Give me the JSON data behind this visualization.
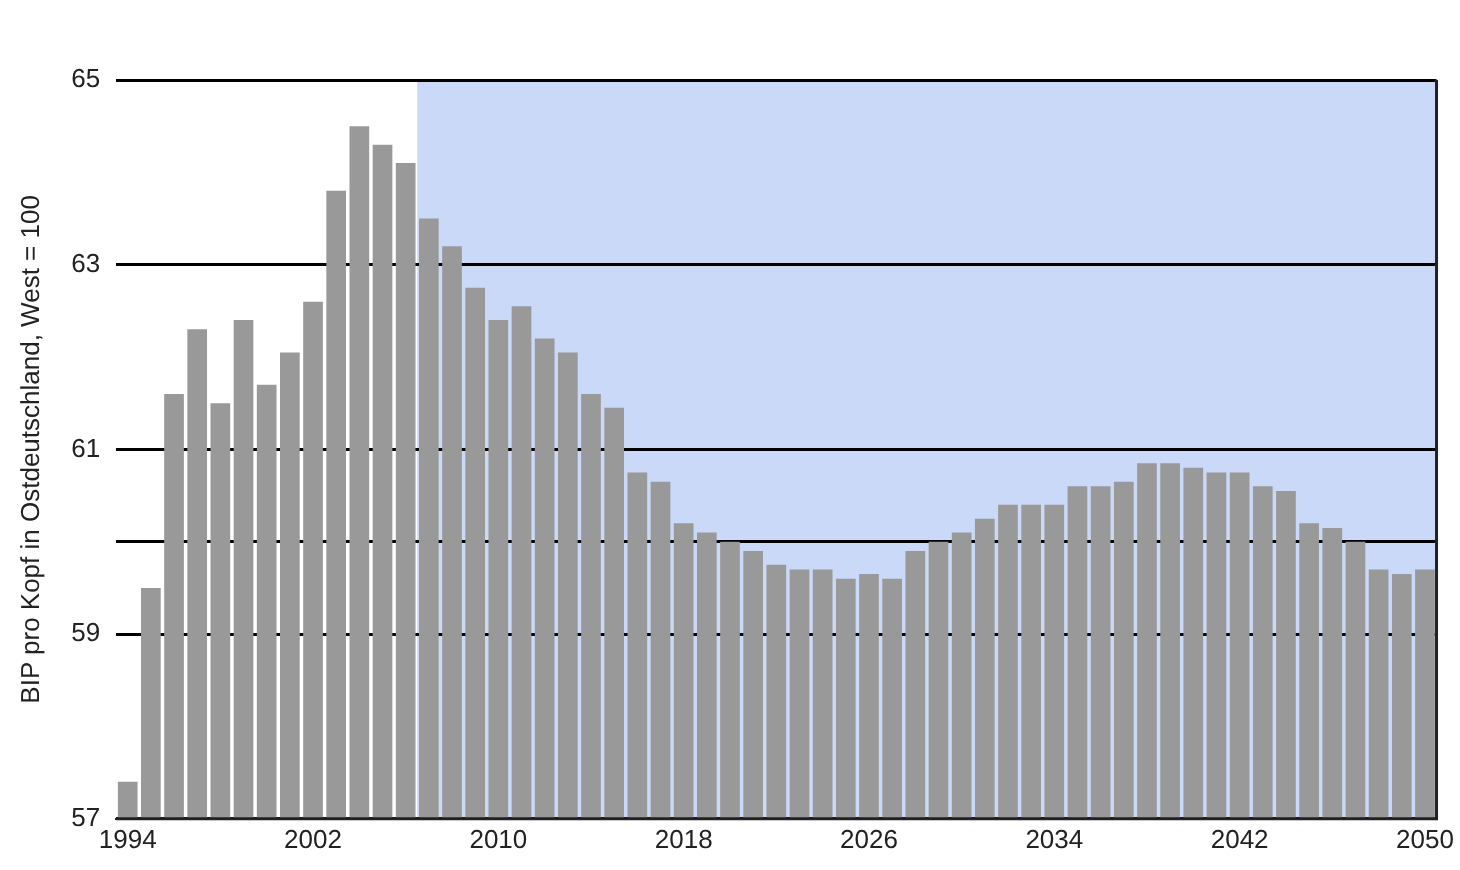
{
  "chart_data": {
    "type": "bar",
    "ylabel": "BIP pro Kopf in Ostdeutschland, West = 100",
    "x": [
      1994,
      1995,
      1996,
      1997,
      1998,
      1999,
      2000,
      2001,
      2002,
      2003,
      2004,
      2005,
      2006,
      2007,
      2008,
      2009,
      2010,
      2011,
      2012,
      2013,
      2014,
      2015,
      2016,
      2017,
      2018,
      2019,
      2020,
      2021,
      2022,
      2023,
      2024,
      2025,
      2026,
      2027,
      2028,
      2029,
      2030,
      2031,
      2032,
      2033,
      2034,
      2035,
      2036,
      2037,
      2038,
      2039,
      2040,
      2041,
      2042,
      2043,
      2044,
      2045,
      2046,
      2047,
      2048,
      2049,
      2050
    ],
    "values": [
      57.4,
      59.5,
      61.6,
      62.3,
      61.5,
      62.4,
      61.7,
      62.05,
      62.6,
      63.8,
      64.5,
      64.3,
      64.1,
      63.5,
      63.2,
      62.75,
      62.4,
      62.55,
      62.2,
      62.05,
      61.6,
      61.45,
      60.75,
      60.65,
      60.2,
      60.1,
      60.0,
      59.9,
      59.75,
      59.7,
      59.7,
      59.6,
      59.65,
      59.6,
      59.9,
      60.0,
      60.1,
      60.25,
      60.4,
      60.4,
      60.4,
      60.6,
      60.6,
      60.65,
      60.85,
      60.85,
      60.8,
      60.75,
      60.75,
      60.6,
      60.55,
      60.2,
      60.15,
      60.0,
      59.7,
      59.65,
      59.7
    ],
    "color": "#999999",
    "xlim": [
      1993.5,
      2050.5
    ],
    "xticks": [
      1994,
      2002,
      2010,
      2018,
      2026,
      2034,
      2042,
      2050
    ],
    "ylim": [
      57,
      65
    ],
    "yticks": [
      57,
      59,
      {
        "value": 60,
        "label": null
      },
      61,
      63,
      65
    ],
    "grid": "y",
    "bands": [
      {
        "axis": "x",
        "from": 2006.5,
        "to": 2050.5,
        "color": "#c9d9f7"
      }
    ]
  }
}
